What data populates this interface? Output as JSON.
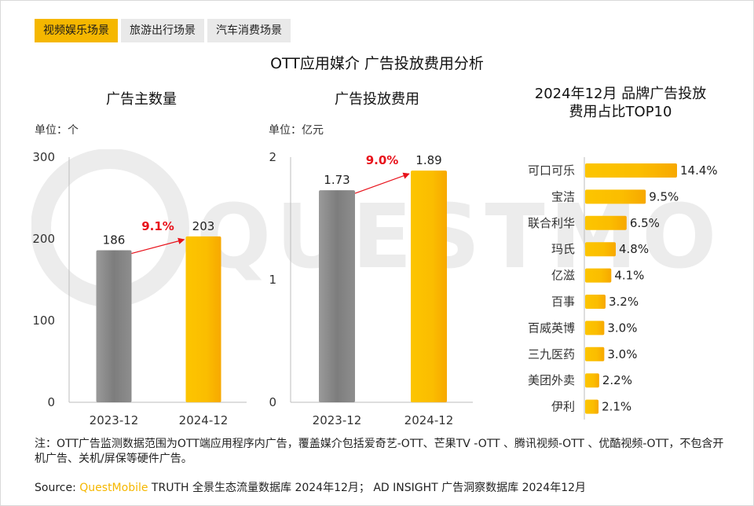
{
  "tabs": [
    {
      "label": "视频娱乐场景",
      "active": true
    },
    {
      "label": "旅游出行场景",
      "active": false
    },
    {
      "label": "汽车消费场景",
      "active": false
    }
  ],
  "main_title": "OTT应用媒介 广告投放费用分析",
  "watermark": {
    "text": "QUESTMOBILE"
  },
  "colors": {
    "gray_bar": "#8c8c8c",
    "yellow_bar": "#fbc000",
    "growth": "#e8121b",
    "tab_active": "#f5b700"
  },
  "note": "注：OTT广告监测数据范围为OTT端应用程序内广告，覆盖媒介包括爱奇艺-OTT、芒果TV -OTT 、腾讯视频-OTT 、优酷视频-OTT，不包含开机广告、关机/屏保等硬件广告。",
  "source": {
    "prefix": "Source: ",
    "brand": "QuestMobile",
    "rest": " TRUTH 全景生态流量数据库 2024年12月； AD INSIGHT 广告洞察数据库 2024年12月"
  },
  "chart_data": [
    {
      "type": "bar",
      "title": "广告主数量",
      "unit": "单位：个",
      "categories": [
        "2023-12",
        "2024-12"
      ],
      "values": [
        186,
        203
      ],
      "value_labels": [
        "186",
        "203"
      ],
      "yticks": [
        "0",
        "100",
        "200",
        "300"
      ],
      "ylim": [
        0,
        300
      ],
      "growth_label": "9.1%"
    },
    {
      "type": "bar",
      "title": "广告投放费用",
      "unit": "单位：亿元",
      "categories": [
        "2023-12",
        "2024-12"
      ],
      "values": [
        1.73,
        1.89
      ],
      "value_labels": [
        "1.73",
        "1.89"
      ],
      "yticks": [
        "0",
        "1",
        "2"
      ],
      "ylim": [
        0,
        2
      ],
      "growth_label": "9.0%"
    },
    {
      "type": "bar",
      "orientation": "horizontal",
      "title": "2024年12月 品牌广告投放费用占比TOP10",
      "title_lines": [
        "2024年12月 品牌广告投放",
        "费用占比TOP10"
      ],
      "categories": [
        "可口可乐",
        "宝洁",
        "联合利华",
        "玛氏",
        "亿滋",
        "百事",
        "百威英博",
        "三九医药",
        "美团外卖",
        "伊利"
      ],
      "values": [
        14.4,
        9.5,
        6.5,
        4.8,
        4.1,
        3.2,
        3.0,
        3.0,
        2.2,
        2.1
      ],
      "value_labels": [
        "14.4%",
        "9.5%",
        "6.5%",
        "4.8%",
        "4.1%",
        "3.2%",
        "3.0%",
        "3.0%",
        "2.2%",
        "2.1%"
      ]
    }
  ]
}
